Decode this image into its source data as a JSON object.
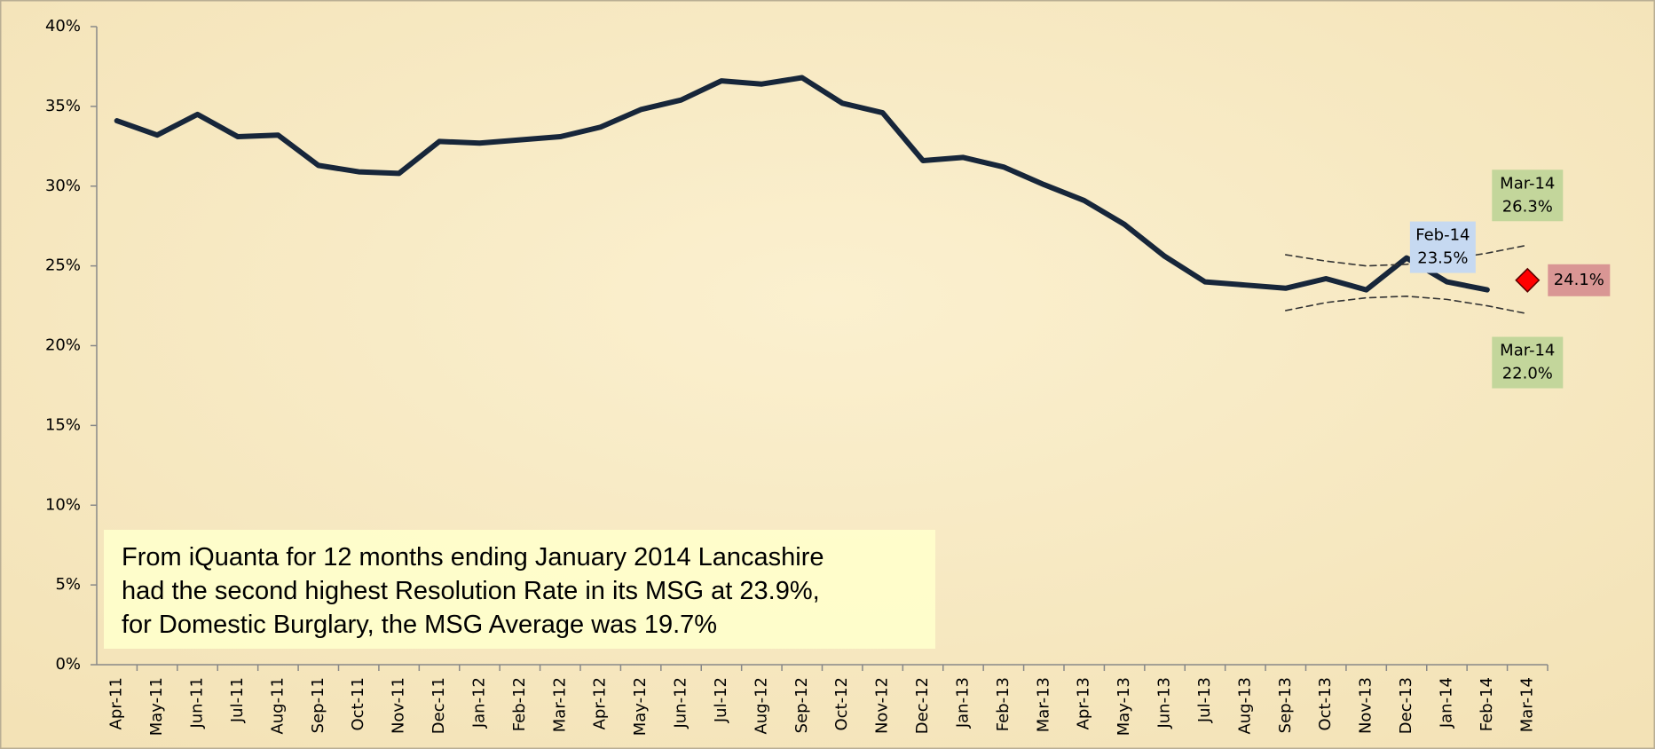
{
  "chart_data": {
    "type": "line",
    "categories": [
      "Apr-11",
      "May-11",
      "Jun-11",
      "Jul-11",
      "Aug-11",
      "Sep-11",
      "Oct-11",
      "Nov-11",
      "Dec-11",
      "Jan-12",
      "Feb-12",
      "Mar-12",
      "Apr-12",
      "May-12",
      "Jun-12",
      "Jul-12",
      "Aug-12",
      "Sep-12",
      "Oct-12",
      "Nov-12",
      "Dec-12",
      "Jan-13",
      "Feb-13",
      "Mar-13",
      "Apr-13",
      "May-13",
      "Jun-13",
      "Jul-13",
      "Aug-13",
      "Sep-13",
      "Oct-13",
      "Nov-13",
      "Dec-13",
      "Jan-14",
      "Feb-14",
      "Mar-14"
    ],
    "series": [
      {
        "color": "#17263a",
        "style": "solid",
        "values": [
          34.1,
          33.2,
          34.5,
          33.1,
          33.2,
          31.3,
          30.9,
          30.8,
          32.8,
          32.7,
          32.9,
          33.1,
          33.7,
          34.8,
          35.4,
          36.6,
          36.4,
          36.8,
          35.2,
          34.6,
          31.6,
          31.8,
          31.2,
          30.1,
          29.1,
          27.6,
          25.6,
          24.0,
          23.8,
          23.6,
          24.2,
          23.5,
          25.5,
          24.0,
          23.5,
          null
        ],
        "value_labels": [
          null,
          null,
          null,
          null,
          null,
          null,
          null,
          null,
          null,
          null,
          null,
          null,
          null,
          null,
          null,
          null,
          null,
          null,
          null,
          null,
          null,
          null,
          null,
          null,
          null,
          null,
          null,
          null,
          null,
          null,
          null,
          null,
          null,
          null,
          "23.5%",
          null
        ]
      },
      {
        "color": "#333333",
        "style": "dashed",
        "values": [
          null,
          null,
          null,
          null,
          null,
          null,
          null,
          null,
          null,
          null,
          null,
          null,
          null,
          null,
          null,
          null,
          null,
          null,
          null,
          null,
          null,
          null,
          null,
          null,
          null,
          null,
          null,
          null,
          null,
          25.7,
          25.3,
          25.0,
          25.1,
          25.4,
          25.8,
          26.3
        ],
        "value_labels": [
          null,
          null,
          null,
          null,
          null,
          null,
          null,
          null,
          null,
          null,
          null,
          null,
          null,
          null,
          null,
          null,
          null,
          null,
          null,
          null,
          null,
          null,
          null,
          null,
          null,
          null,
          null,
          null,
          null,
          null,
          null,
          null,
          null,
          null,
          null,
          "26.3%"
        ]
      },
      {
        "color": "#333333",
        "style": "dashed",
        "values": [
          null,
          null,
          null,
          null,
          null,
          null,
          null,
          null,
          null,
          null,
          null,
          null,
          null,
          null,
          null,
          null,
          null,
          null,
          null,
          null,
          null,
          null,
          null,
          null,
          null,
          null,
          null,
          null,
          null,
          22.2,
          22.7,
          23.0,
          23.1,
          22.9,
          22.5,
          22.0
        ],
        "value_labels": [
          null,
          null,
          null,
          null,
          null,
          null,
          null,
          null,
          null,
          null,
          null,
          null,
          null,
          null,
          null,
          null,
          null,
          null,
          null,
          null,
          null,
          null,
          null,
          null,
          null,
          null,
          null,
          null,
          null,
          null,
          null,
          null,
          null,
          null,
          null,
          "22.0%"
        ]
      },
      {
        "color": "#ff0000",
        "style": "diamond",
        "values": [
          null,
          null,
          null,
          null,
          null,
          null,
          null,
          null,
          null,
          null,
          null,
          null,
          null,
          null,
          null,
          null,
          null,
          null,
          null,
          null,
          null,
          null,
          null,
          null,
          null,
          null,
          null,
          null,
          null,
          null,
          null,
          null,
          null,
          null,
          null,
          24.1
        ],
        "value_labels": [
          null,
          null,
          null,
          null,
          null,
          null,
          null,
          null,
          null,
          null,
          null,
          null,
          null,
          null,
          null,
          null,
          null,
          null,
          null,
          null,
          null,
          null,
          null,
          null,
          null,
          null,
          null,
          null,
          null,
          null,
          null,
          null,
          null,
          null,
          null,
          "24.1%"
        ]
      }
    ],
    "ylim": [
      0,
      40
    ],
    "yticks": [
      {
        "value": 0,
        "label": "0%"
      },
      {
        "value": 5,
        "label": "5%"
      },
      {
        "value": 10,
        "label": "10%"
      },
      {
        "value": 15,
        "label": "15%"
      },
      {
        "value": 20,
        "label": "20%"
      },
      {
        "value": 25,
        "label": "25%"
      },
      {
        "value": 30,
        "label": "30%"
      },
      {
        "value": 35,
        "label": "35%"
      },
      {
        "value": 40,
        "label": "40%"
      }
    ],
    "annotation": [
      "From iQuanta for 12 months ending January 2014 Lancashire",
      "had the second highest Resolution Rate in its MSG at 23.9%,",
      "for Domestic Burglary, the MSG Average was 19.7%"
    ]
  }
}
